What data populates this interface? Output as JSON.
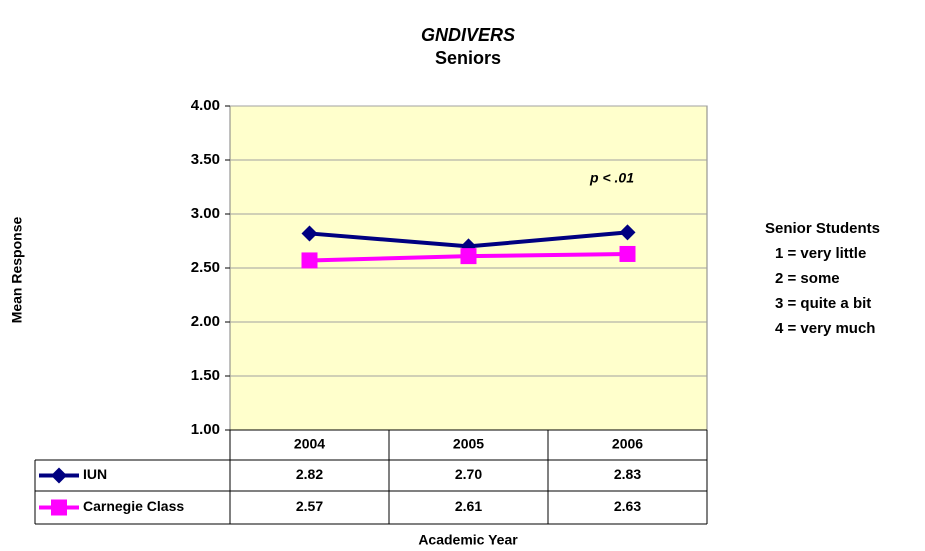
{
  "chart_data": {
    "type": "line",
    "title": "GNDIVERS",
    "subtitle": "Seniors",
    "y_label": "Mean Response",
    "x_label": "Academic Year",
    "annotation": "p < .01",
    "categories": [
      "2004",
      "2005",
      "2006"
    ],
    "series": [
      {
        "name": "IUN",
        "color": "#000080",
        "marker": "diamond",
        "values": [
          2.82,
          2.7,
          2.83
        ],
        "value_labels": [
          "2.82",
          "2.70",
          "2.83"
        ]
      },
      {
        "name": "Carnegie Class",
        "color": "#ff00ff",
        "marker": "square",
        "values": [
          2.57,
          2.61,
          2.63
        ],
        "value_labels": [
          "2.57",
          "2.61",
          "2.63"
        ]
      }
    ],
    "ylim": [
      1,
      4
    ],
    "yticks": [
      {
        "value": 1,
        "label": "1.00"
      },
      {
        "value": 1.5,
        "label": "1.50"
      },
      {
        "value": 2,
        "label": "2.00"
      },
      {
        "value": 2.5,
        "label": "2.50"
      },
      {
        "value": 3,
        "label": "3.00"
      },
      {
        "value": 3.5,
        "label": "3.50"
      },
      {
        "value": 4,
        "label": "4.00"
      }
    ],
    "grid": true,
    "plot_background": "#ffffcc",
    "note": {
      "title": "Senior Students",
      "lines": [
        "1 = very little",
        "2 = some",
        "3 = quite a bit",
        "4 = very much"
      ]
    }
  }
}
